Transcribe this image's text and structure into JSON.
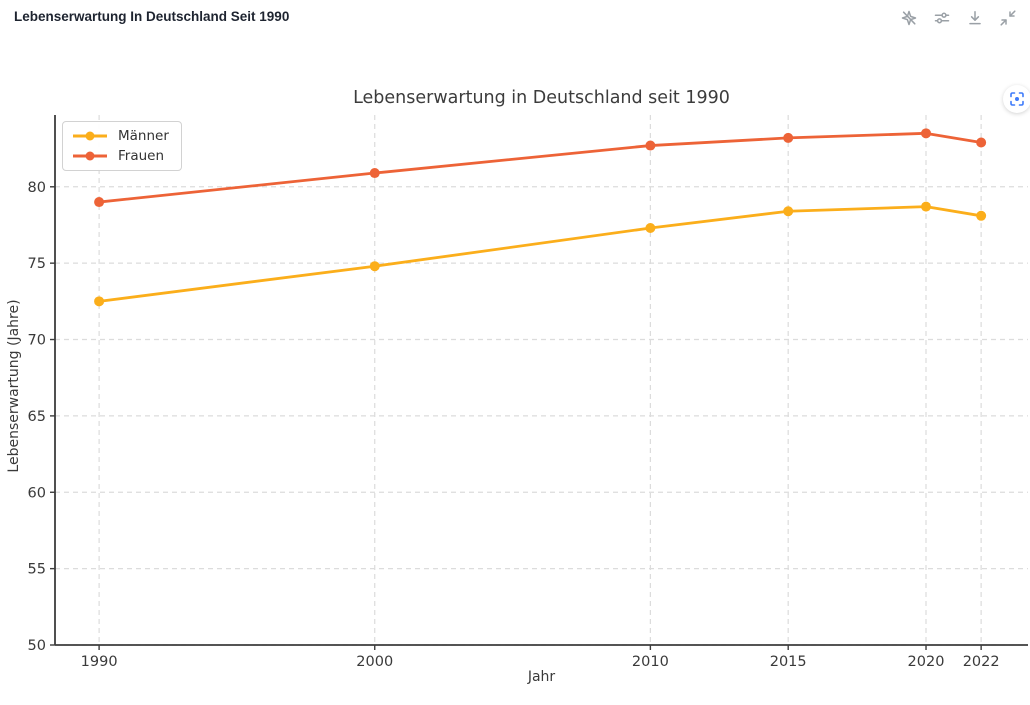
{
  "header": {
    "title": "Lebenserwartung In Deutschland Seit 1990",
    "icons": [
      {
        "name": "sparkle-off-icon"
      },
      {
        "name": "sliders-icon"
      },
      {
        "name": "download-icon"
      },
      {
        "name": "collapse-icon"
      }
    ]
  },
  "colors": {
    "maenner": "#FBAE1B",
    "frauen": "#ED6337",
    "grid": "#DCDCDC",
    "axis": "#3d3d3d",
    "tick_text": "#3a3a3a",
    "header_icon": "#9AA0A6",
    "focus_icon": "#3E7BFA"
  },
  "chart_data": {
    "type": "line",
    "title": "Lebenserwartung in Deutschland seit 1990",
    "xlabel": "Jahr",
    "ylabel": "Lebenserwartung (Jahre)",
    "x": [
      1990,
      2000,
      2010,
      2015,
      2020,
      2022
    ],
    "series": [
      {
        "name": "Männer",
        "color": "#FBAE1B",
        "values": [
          72.5,
          74.8,
          77.3,
          78.4,
          78.7,
          78.1
        ]
      },
      {
        "name": "Frauen",
        "color": "#ED6337",
        "values": [
          79.0,
          80.9,
          82.7,
          83.2,
          83.5,
          82.9
        ]
      }
    ],
    "xticks": [
      1990,
      2000,
      2010,
      2015,
      2020,
      2022
    ],
    "yticks": [
      50,
      55,
      60,
      65,
      70,
      75,
      80
    ],
    "xlim": [
      1988.4,
      2023.7
    ],
    "ylim": [
      50,
      84.7
    ],
    "grid": true,
    "grid_style": "dashed",
    "legend_position": "upper-left"
  }
}
